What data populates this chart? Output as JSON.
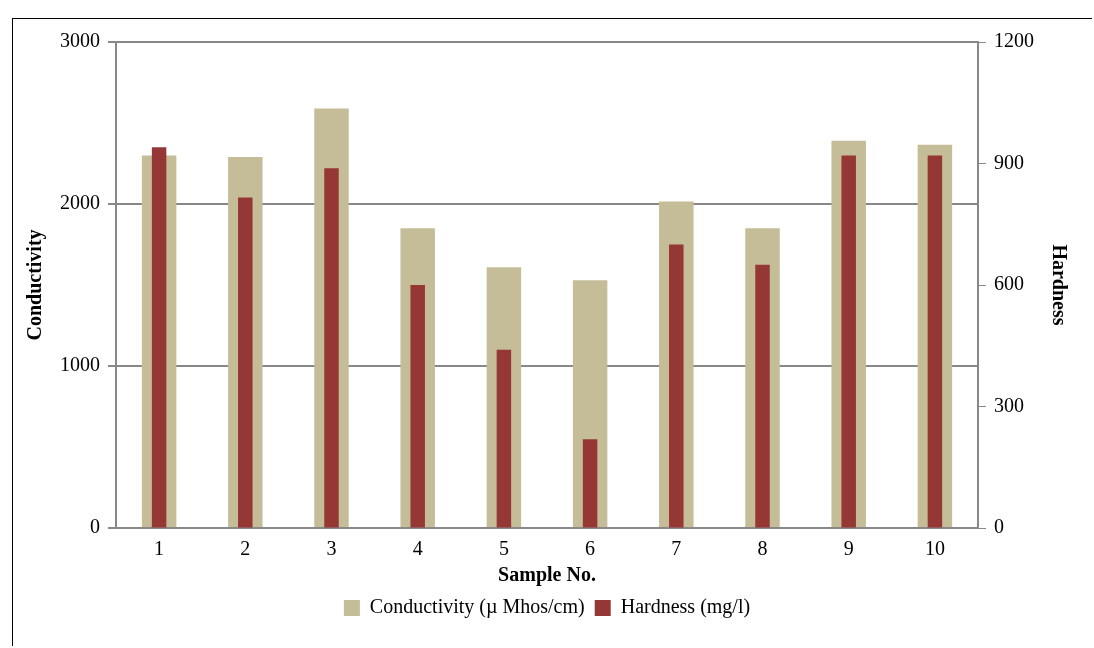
{
  "chart_data": {
    "type": "bar",
    "xlabel": "Sample No.",
    "ylabel": "Conductivity",
    "y2label": "Hardness",
    "categories": [
      "1",
      "2",
      "3",
      "4",
      "5",
      "6",
      "7",
      "8",
      "9",
      "10"
    ],
    "series": [
      {
        "name": "Conductivity (µ Mhos/cm)",
        "color": "#c4bd97",
        "values": [
          2300,
          2290,
          2590,
          1850,
          1610,
          1530,
          2015,
          1850,
          2390,
          2365
        ]
      },
      {
        "name": "Hardness (mg/l)",
        "color": "#953735",
        "axis": "y2",
        "values": [
          940,
          816,
          888,
          600,
          440,
          219,
          700,
          650,
          920,
          920
        ]
      }
    ],
    "ylim": [
      0,
      3000
    ],
    "yticks": [
      0,
      1000,
      2000,
      3000
    ],
    "y2lim": [
      0,
      1200
    ],
    "y2ticks": [
      0,
      300,
      600,
      900,
      1200
    ],
    "grid": "y",
    "legend": "bottom"
  }
}
